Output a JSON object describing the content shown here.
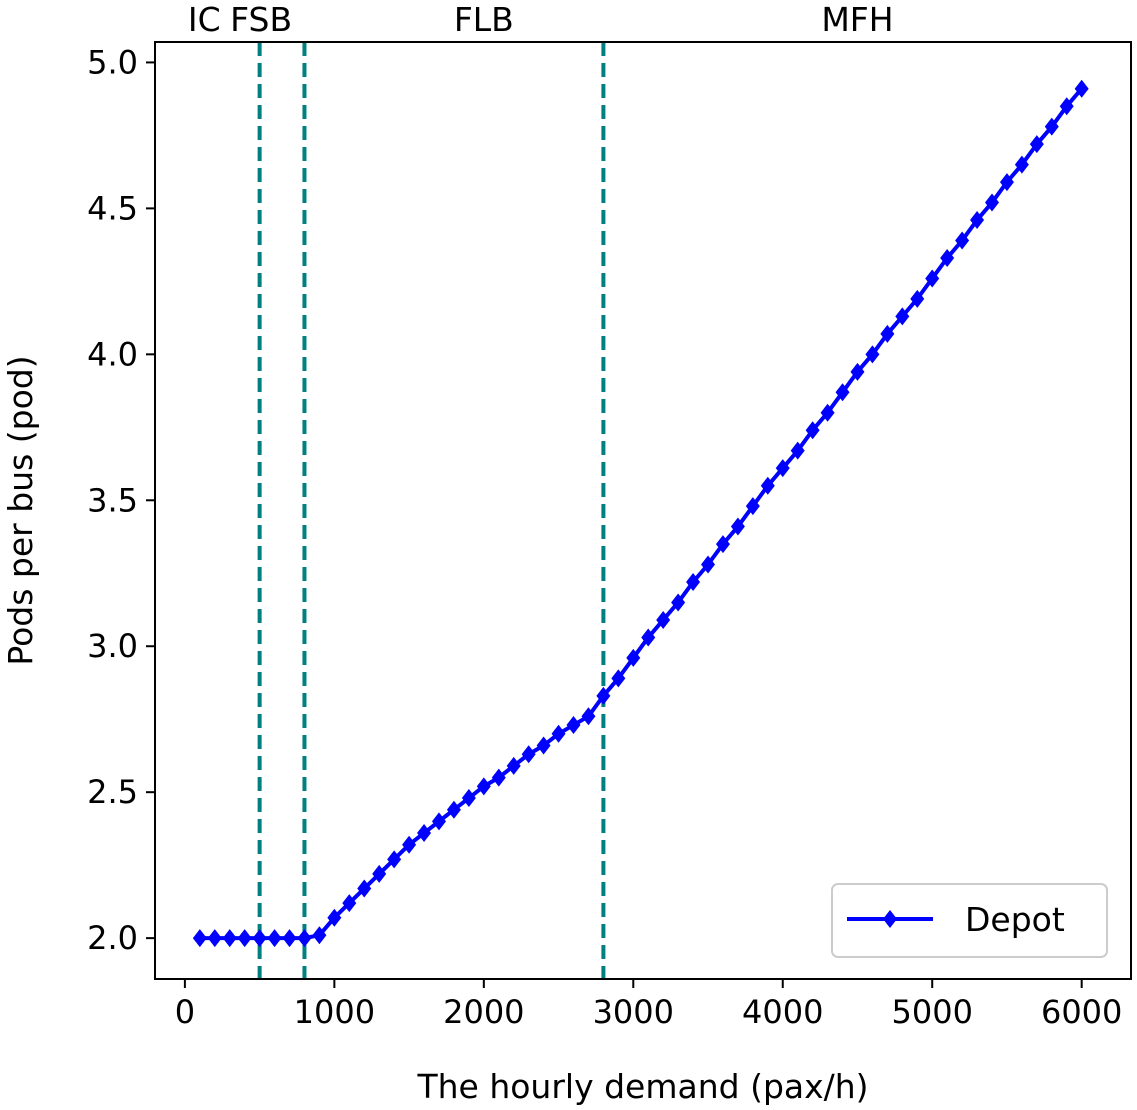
{
  "chart_data": {
    "type": "line",
    "title": "",
    "xlabel": "The hourly demand (pax/h)",
    "ylabel": "Pods per bus (pod)",
    "xlim": [
      -200,
      6330
    ],
    "ylim": [
      1.86,
      5.07
    ],
    "xticks": [
      0,
      1000,
      2000,
      3000,
      4000,
      5000,
      6000
    ],
    "yticks": [
      2.0,
      2.5,
      3.0,
      3.5,
      4.0,
      4.5,
      5.0
    ],
    "xtick_labels": [
      "0",
      "1000",
      "2000",
      "3000",
      "4000",
      "5000",
      "6000"
    ],
    "ytick_labels": [
      "2.0",
      "2.5",
      "3.0",
      "3.5",
      "4.0",
      "4.5",
      "5.0"
    ],
    "grid": false,
    "legend_position": "lower-right",
    "colors": {
      "series": "#0000ff",
      "divider": "#008080"
    },
    "dividers": [
      500,
      800,
      2800
    ],
    "regions": [
      {
        "label": "IC",
        "x": 130
      },
      {
        "label": "FSB",
        "x": 510
      },
      {
        "label": "FLB",
        "x": 2000
      },
      {
        "label": "MFH",
        "x": 4500
      }
    ],
    "series": [
      {
        "name": "Depot",
        "marker": "diamond",
        "x": [
          100,
          200,
          300,
          400,
          500,
          600,
          700,
          800,
          900,
          1000,
          1100,
          1200,
          1300,
          1400,
          1500,
          1600,
          1700,
          1800,
          1900,
          2000,
          2100,
          2200,
          2300,
          2400,
          2500,
          2600,
          2700,
          2800,
          2900,
          3000,
          3100,
          3200,
          3300,
          3400,
          3500,
          3600,
          3700,
          3800,
          3900,
          4000,
          4100,
          4200,
          4300,
          4400,
          4500,
          4600,
          4700,
          4800,
          4900,
          5000,
          5100,
          5200,
          5300,
          5400,
          5500,
          5600,
          5700,
          5800,
          5900,
          6000
        ],
        "y": [
          2.0,
          2.0,
          2.0,
          2.0,
          2.0,
          2.0,
          2.0,
          2.0,
          2.01,
          2.07,
          2.12,
          2.17,
          2.22,
          2.27,
          2.32,
          2.36,
          2.4,
          2.44,
          2.48,
          2.52,
          2.55,
          2.59,
          2.63,
          2.66,
          2.7,
          2.73,
          2.76,
          2.83,
          2.89,
          2.96,
          3.03,
          3.09,
          3.15,
          3.22,
          3.28,
          3.35,
          3.41,
          3.48,
          3.55,
          3.61,
          3.67,
          3.74,
          3.8,
          3.87,
          3.94,
          4.0,
          4.07,
          4.13,
          4.19,
          4.26,
          4.33,
          4.39,
          4.46,
          4.52,
          4.59,
          4.65,
          4.72,
          4.78,
          4.85,
          4.91
        ]
      }
    ]
  }
}
